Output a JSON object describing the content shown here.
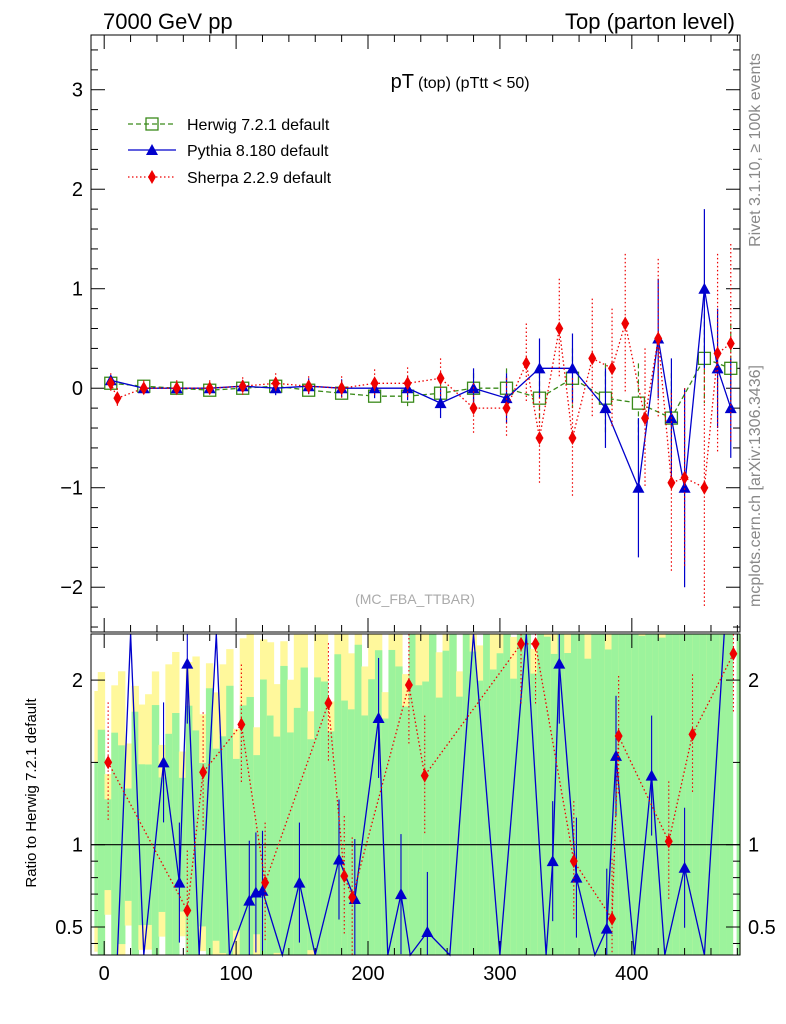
{
  "header": {
    "left": "7000 GeV pp",
    "right": "Top (parton level)"
  },
  "side": {
    "rivet": "Rivet 3.1.10, ≥ 100k events",
    "mcplots": "mcplots.cern.ch [arXiv:1306.3436]"
  },
  "chart_data": [
    {
      "type": "line",
      "title": "pT (top) (pTtt < 50)",
      "title_main": "pT",
      "title_sub": "(top) (pTtt < 50)",
      "analysis": "(MC_FBA_TTBAR)",
      "xlabel": "",
      "ylabel": "",
      "xlim": [
        -10,
        482
      ],
      "ylim": [
        -2.45,
        3.55
      ],
      "yticks": [
        -2,
        -1,
        0,
        1,
        2,
        3
      ],
      "ytick_labels": [
        "−2",
        "−1",
        "0",
        "1",
        "2",
        "3"
      ],
      "legend": [
        "Herwig 7.2.1 default",
        "Pythia 8.180 default",
        "Sherpa 2.2.9 default"
      ],
      "legend_position": "top-left",
      "colors": {
        "herwig": "#3a8a1a",
        "pythia": "#0000cc",
        "sherpa": "#ee0000"
      },
      "series": [
        {
          "name": "Herwig 7.2.1 default",
          "x": [
            5,
            30,
            55,
            80,
            105,
            130,
            155,
            180,
            205,
            230,
            255,
            280,
            305,
            330,
            355,
            380,
            405,
            430,
            455,
            475
          ],
          "values": [
            0.05,
            0.02,
            0.0,
            -0.02,
            0.0,
            0.02,
            -0.02,
            -0.05,
            -0.08,
            -0.08,
            -0.05,
            0.0,
            0.0,
            -0.1,
            0.1,
            -0.1,
            -0.15,
            -0.3,
            0.3,
            0.2
          ],
          "errors": [
            0.04,
            0.04,
            0.04,
            0.04,
            0.05,
            0.05,
            0.06,
            0.07,
            0.08,
            0.1,
            0.12,
            0.15,
            0.2,
            0.25,
            0.3,
            0.35,
            0.4,
            0.45,
            0.45,
            0.45
          ]
        },
        {
          "name": "Pythia 8.180 default",
          "x": [
            5,
            30,
            55,
            80,
            105,
            130,
            155,
            180,
            205,
            230,
            255,
            280,
            305,
            330,
            355,
            380,
            405,
            420,
            430,
            440,
            455,
            465,
            475
          ],
          "values": [
            0.08,
            0.0,
            0.0,
            0.0,
            0.02,
            0.0,
            0.02,
            0.0,
            0.0,
            0.0,
            -0.15,
            0.0,
            -0.1,
            0.2,
            0.2,
            -0.2,
            -1.0,
            0.5,
            -0.3,
            -1.0,
            1.0,
            0.2,
            -0.2
          ],
          "errors": [
            0.05,
            0.05,
            0.05,
            0.05,
            0.06,
            0.07,
            0.08,
            0.09,
            0.1,
            0.12,
            0.15,
            0.2,
            0.25,
            0.3,
            0.35,
            0.4,
            0.7,
            0.6,
            0.6,
            1.0,
            0.8,
            0.6,
            0.5
          ]
        },
        {
          "name": "Sherpa 2.2.9 default",
          "x": [
            5,
            10,
            30,
            55,
            80,
            105,
            130,
            155,
            180,
            205,
            230,
            255,
            280,
            305,
            320,
            330,
            345,
            355,
            370,
            385,
            395,
            410,
            420,
            430,
            440,
            455,
            465,
            475
          ],
          "values": [
            0.05,
            -0.1,
            0.0,
            0.0,
            0.0,
            0.02,
            0.05,
            0.02,
            0.0,
            0.05,
            0.05,
            0.1,
            -0.2,
            -0.2,
            0.25,
            -0.5,
            0.6,
            -0.5,
            0.3,
            0.2,
            0.65,
            -0.3,
            0.5,
            -0.95,
            -0.9,
            -1.0,
            0.35,
            0.45
          ],
          "errors": [
            0.1,
            0.1,
            0.08,
            0.08,
            0.08,
            0.09,
            0.1,
            0.1,
            0.12,
            0.14,
            0.16,
            0.2,
            0.25,
            0.3,
            0.4,
            0.45,
            0.5,
            0.6,
            0.6,
            0.6,
            0.7,
            0.7,
            0.8,
            0.9,
            0.9,
            1.2,
            1.0,
            1.0
          ]
        }
      ]
    },
    {
      "type": "line",
      "title": "",
      "ylabel": "Ratio to Herwig 7.2.1 default",
      "xlabel": "",
      "xlim": [
        -10,
        482
      ],
      "ylim": [
        0.33,
        2.28
      ],
      "yticks": [
        0.5,
        1,
        2
      ],
      "ytick_labels": [
        "0.5",
        "1",
        "2"
      ],
      "xticks": [
        0,
        100,
        200,
        300,
        400
      ],
      "xtick_labels": [
        "0",
        "100",
        "200",
        "300",
        "400"
      ],
      "reference_line": 1,
      "band_colors": {
        "inner": "#9cf39c",
        "outer": "#fff89c"
      },
      "series": [
        {
          "name": "Pythia 8.180 default",
          "x": [
            10,
            20,
            30,
            45,
            57,
            63,
            72,
            85,
            95,
            110,
            115,
            120,
            135,
            148,
            160,
            178,
            190,
            208,
            215,
            225,
            232,
            245,
            262,
            280,
            300,
            320,
            335,
            340,
            345,
            358,
            372,
            381,
            388,
            402,
            415,
            425,
            440,
            455,
            470
          ],
          "values": [
            0.33,
            2.28,
            0.33,
            1.5,
            0.77,
            2.1,
            0.33,
            2.28,
            0.33,
            0.66,
            0.71,
            0.72,
            0.33,
            0.77,
            0.33,
            0.91,
            0.67,
            1.77,
            0.33,
            0.7,
            0.33,
            0.47,
            0.33,
            2.28,
            0.33,
            2.28,
            0.33,
            0.9,
            2.1,
            0.8,
            0.33,
            0.49,
            1.54,
            0.33,
            1.42,
            0.33,
            0.86,
            0.33,
            2.28
          ]
        },
        {
          "name": "Sherpa 2.2.9 default",
          "x": [
            3,
            63,
            75,
            104,
            122,
            170,
            182,
            188,
            231,
            243,
            316,
            327,
            356,
            385,
            390,
            428,
            446,
            477
          ],
          "values": [
            1.5,
            0.6,
            1.44,
            1.73,
            0.77,
            1.86,
            0.81,
            0.68,
            1.97,
            1.42,
            2.22,
            2.22,
            0.9,
            0.55,
            1.66,
            1.02,
            1.67,
            2.16
          ]
        }
      ]
    }
  ]
}
